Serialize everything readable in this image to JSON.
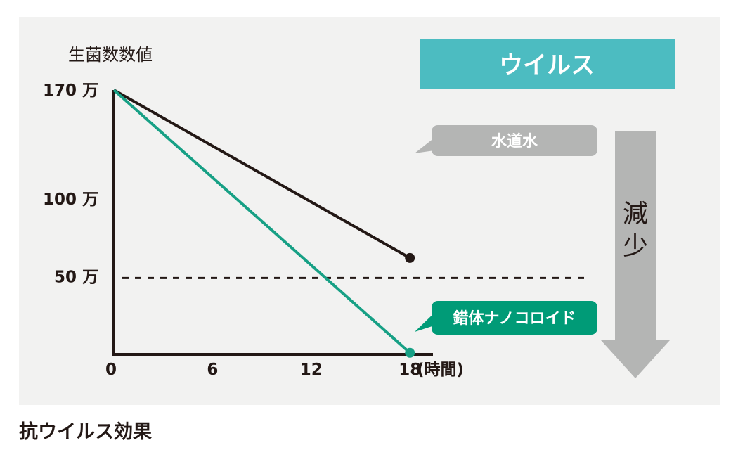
{
  "caption": "抗ウイルス効果",
  "header_box": {
    "label": "ウイルス",
    "color": "#4cbcc1"
  },
  "arrow": {
    "label": "減少",
    "color": "#b4b5b4"
  },
  "chart_data": {
    "type": "line",
    "ylabel": "生菌数数値",
    "xunit": "(時間)",
    "x_ticks": [
      0,
      6,
      12,
      18
    ],
    "y_ticks": [
      {
        "value": 1700000,
        "label": "170 万"
      },
      {
        "value": 1000000,
        "label": "100 万"
      },
      {
        "value": 500000,
        "label": "50 万"
      }
    ],
    "reference_line": {
      "value": 500000,
      "style": "dashed"
    },
    "series": [
      {
        "name": "水道水",
        "color": "#231815",
        "label_bg": "#b4b5b4",
        "points": [
          {
            "x": 0,
            "y": 1700000
          },
          {
            "x": 18,
            "y": 620000
          }
        ]
      },
      {
        "name": "錯体ナノコロイド",
        "color": "#17a085",
        "label_bg": "#009b77",
        "points": [
          {
            "x": 0,
            "y": 1700000
          },
          {
            "x": 18,
            "y": 10000
          }
        ]
      }
    ]
  }
}
